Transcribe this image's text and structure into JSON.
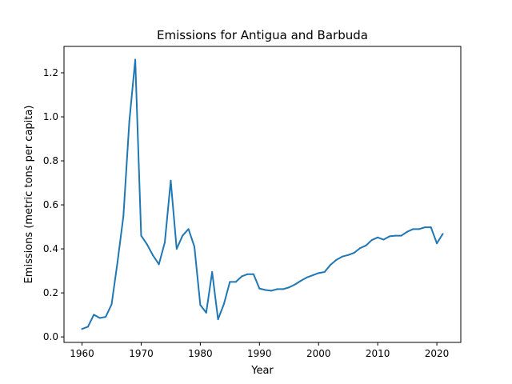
{
  "chart_data": {
    "type": "line",
    "title": "Emissions for Antigua and Barbuda",
    "xlabel": "Year",
    "ylabel": "Emissions (metric tons per capita)",
    "xlim": [
      1956.95,
      2024.05
    ],
    "ylim": [
      -0.025,
      1.32
    ],
    "xticks": [
      1960,
      1970,
      1980,
      1990,
      2000,
      2010,
      2020
    ],
    "yticks": [
      0.0,
      0.2,
      0.4,
      0.6,
      0.8,
      1.0,
      1.2
    ],
    "ytick_labels": [
      "0.0",
      "0.2",
      "0.4",
      "0.6",
      "0.8",
      "1.0",
      "1.2"
    ],
    "grid": false,
    "series": [
      {
        "color": "#1f77b4",
        "x": [
          1960,
          1961,
          1962,
          1963,
          1964,
          1965,
          1966,
          1967,
          1968,
          1969,
          1970,
          1971,
          1972,
          1973,
          1974,
          1975,
          1976,
          1977,
          1978,
          1979,
          1980,
          1981,
          1982,
          1983,
          1984,
          1985,
          1986,
          1987,
          1988,
          1989,
          1990,
          1991,
          1992,
          1993,
          1994,
          1995,
          1996,
          1997,
          1998,
          1999,
          2000,
          2001,
          2002,
          2003,
          2004,
          2005,
          2006,
          2007,
          2008,
          2009,
          2010,
          2011,
          2012,
          2013,
          2014,
          2015,
          2016,
          2017,
          2018,
          2019,
          2020,
          2021
        ],
        "y": [
          0.036,
          0.046,
          0.101,
          0.086,
          0.091,
          0.148,
          0.34,
          0.55,
          0.98,
          1.26,
          0.46,
          0.42,
          0.37,
          0.33,
          0.43,
          0.71,
          0.4,
          0.46,
          0.49,
          0.41,
          0.145,
          0.11,
          0.295,
          0.08,
          0.15,
          0.25,
          0.25,
          0.275,
          0.285,
          0.285,
          0.22,
          0.213,
          0.21,
          0.217,
          0.217,
          0.225,
          0.238,
          0.255,
          0.27,
          0.28,
          0.29,
          0.295,
          0.327,
          0.35,
          0.365,
          0.372,
          0.382,
          0.403,
          0.415,
          0.44,
          0.452,
          0.442,
          0.457,
          0.46,
          0.46,
          0.478,
          0.49,
          0.49,
          0.498,
          0.498,
          0.425,
          0.468
        ]
      }
    ]
  }
}
